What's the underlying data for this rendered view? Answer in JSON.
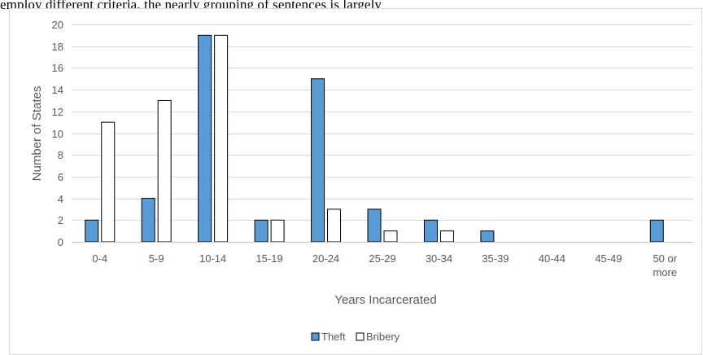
{
  "caption": "employ different criteria, the nearly grouping of sentences is largely",
  "chart_data": {
    "type": "bar",
    "categories": [
      "0-4",
      "5-9",
      "10-14",
      "15-19",
      "20-24",
      "25-29",
      "30-34",
      "35-39",
      "40-44",
      "45-49",
      "50 or more"
    ],
    "category_lines": [
      [
        "0-4"
      ],
      [
        "5-9"
      ],
      [
        "10-14"
      ],
      [
        "15-19"
      ],
      [
        "20-24"
      ],
      [
        "25-29"
      ],
      [
        "30-34"
      ],
      [
        "35-39"
      ],
      [
        "40-44"
      ],
      [
        "45-49"
      ],
      [
        "50 or",
        "more"
      ]
    ],
    "series": [
      {
        "name": "Theft",
        "values": [
          2,
          4,
          19,
          2,
          15,
          3,
          2,
          1,
          0,
          0,
          2
        ],
        "color": "#5b9bd5"
      },
      {
        "name": "Bribery",
        "values": [
          11,
          13,
          19,
          2,
          3,
          1,
          1,
          0,
          0,
          0,
          0
        ],
        "color": "#ffffff"
      }
    ],
    "xlabel": "Years Incarcerated",
    "ylabel": "Number of States",
    "ylim": [
      0,
      20
    ],
    "yticks": [
      0,
      2,
      4,
      6,
      8,
      10,
      12,
      14,
      16,
      18,
      20
    ],
    "grid": true,
    "legend_position": "bottom"
  }
}
